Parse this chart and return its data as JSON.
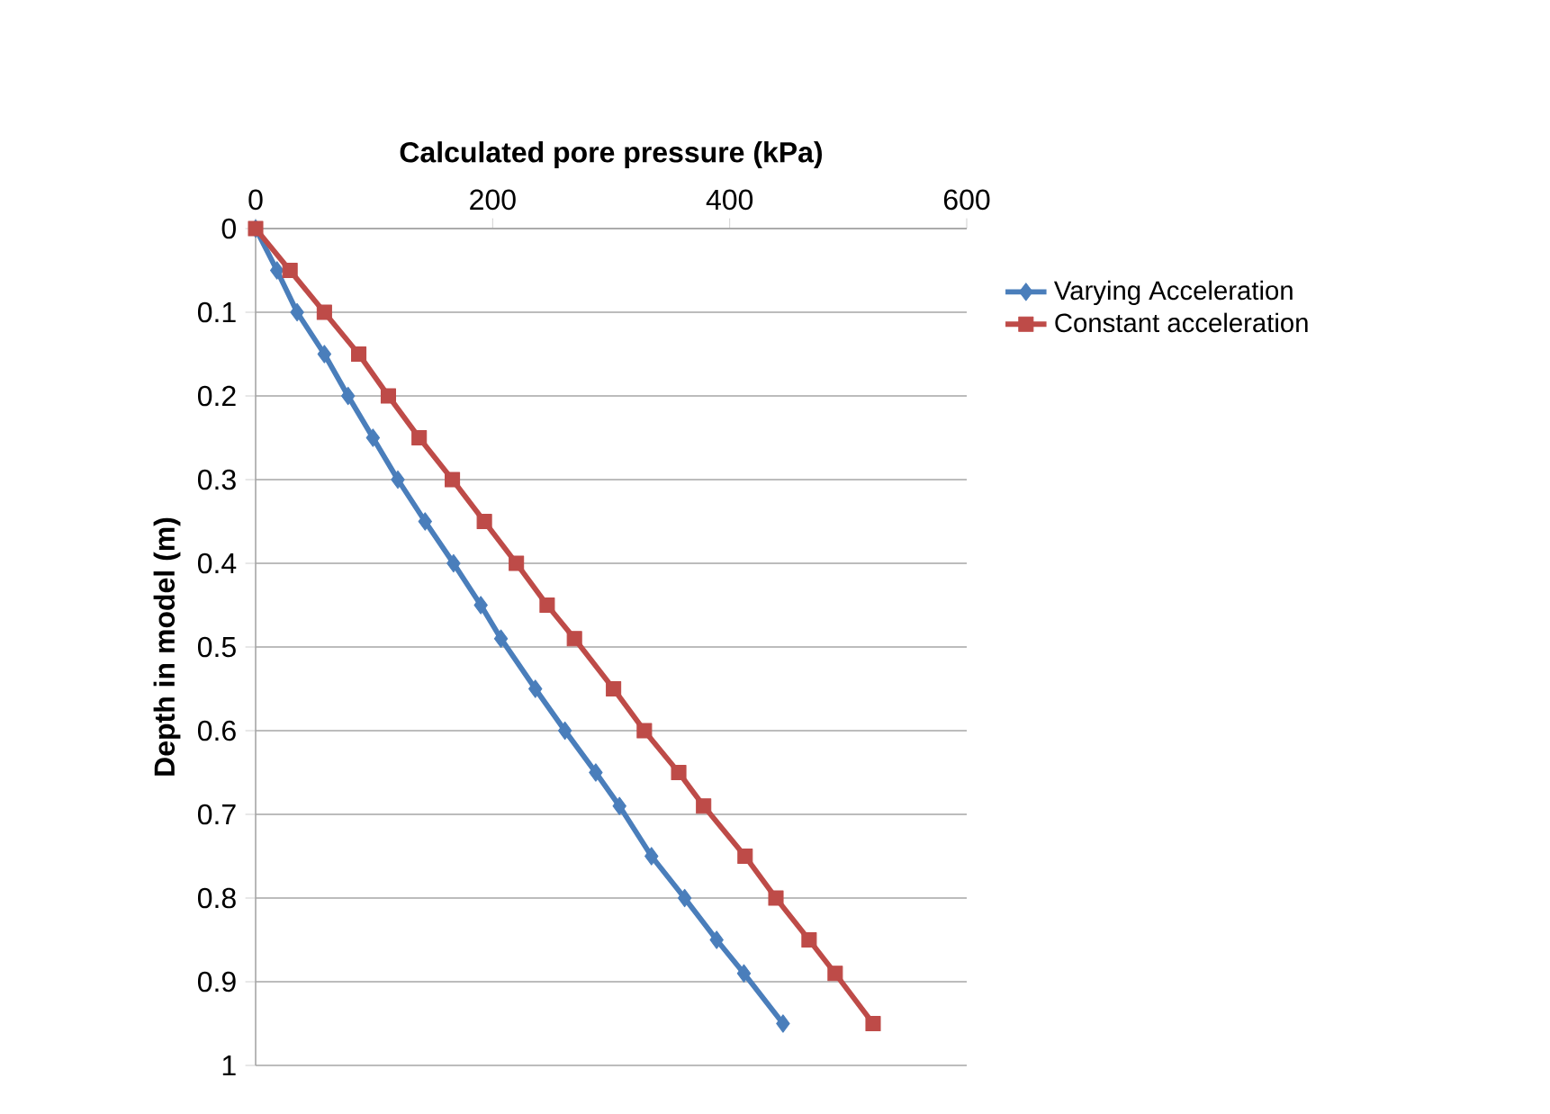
{
  "chart_data": {
    "type": "line",
    "xlabel": "Calculated pore pressure (kPa)",
    "ylabel": "Depth in model (m)",
    "xlim": [
      0,
      600
    ],
    "xticks": [
      0,
      200,
      400,
      600
    ],
    "ylim": [
      1,
      0
    ],
    "yticks": [
      0,
      0.1,
      0.2,
      0.3,
      0.4,
      0.5,
      0.6,
      0.7,
      0.8,
      0.9,
      1
    ],
    "grid": "y",
    "legend": "right",
    "series": [
      {
        "name": "Varying Acceleration",
        "color": "#4a7ebb",
        "marker": "diamond",
        "x": [
          0,
          18,
          35,
          58,
          78,
          99,
          120,
          143,
          167,
          190,
          207,
          236,
          261,
          287,
          307,
          334,
          362,
          389,
          412,
          445
        ],
        "values": [
          0,
          0.05,
          0.1,
          0.15,
          0.2,
          0.25,
          0.3,
          0.35,
          0.4,
          0.45,
          0.49,
          0.55,
          0.6,
          0.65,
          0.69,
          0.75,
          0.8,
          0.85,
          0.89,
          0.95
        ]
      },
      {
        "name": "Constant acceleration",
        "color": "#be4b48",
        "marker": "square",
        "x": [
          0,
          29,
          58,
          87,
          112,
          138,
          166,
          193,
          220,
          246,
          269,
          302,
          328,
          357,
          378,
          413,
          439,
          467,
          489,
          521
        ],
        "values": [
          0,
          0.05,
          0.1,
          0.15,
          0.2,
          0.25,
          0.3,
          0.35,
          0.4,
          0.45,
          0.49,
          0.55,
          0.6,
          0.65,
          0.69,
          0.75,
          0.8,
          0.85,
          0.89,
          0.95
        ]
      }
    ]
  }
}
